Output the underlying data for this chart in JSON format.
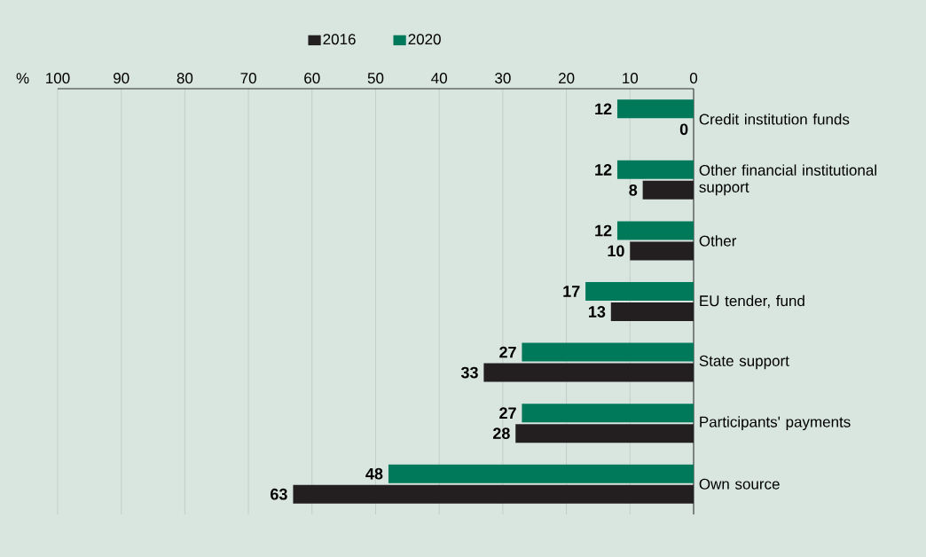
{
  "chart_data": {
    "type": "bar",
    "orientation": "horizontal",
    "xlabel": "%",
    "categories": [
      "Credit institution funds",
      "Other financial institutional support",
      "Other",
      "EU tender, fund",
      "State support",
      "Participants' payments",
      "Own source"
    ],
    "series": [
      {
        "name": "2016",
        "color": "#231f20",
        "values": [
          0,
          8,
          10,
          13,
          33,
          28,
          63
        ]
      },
      {
        "name": "2020",
        "color": "#00785a",
        "values": [
          12,
          12,
          12,
          17,
          27,
          27,
          48
        ]
      }
    ],
    "xlim": [
      100,
      0
    ],
    "xticks": [
      100,
      90,
      80,
      70,
      60,
      50,
      40,
      30,
      20,
      10,
      0
    ],
    "grid": "x",
    "legend": "top",
    "data_labels": true
  }
}
